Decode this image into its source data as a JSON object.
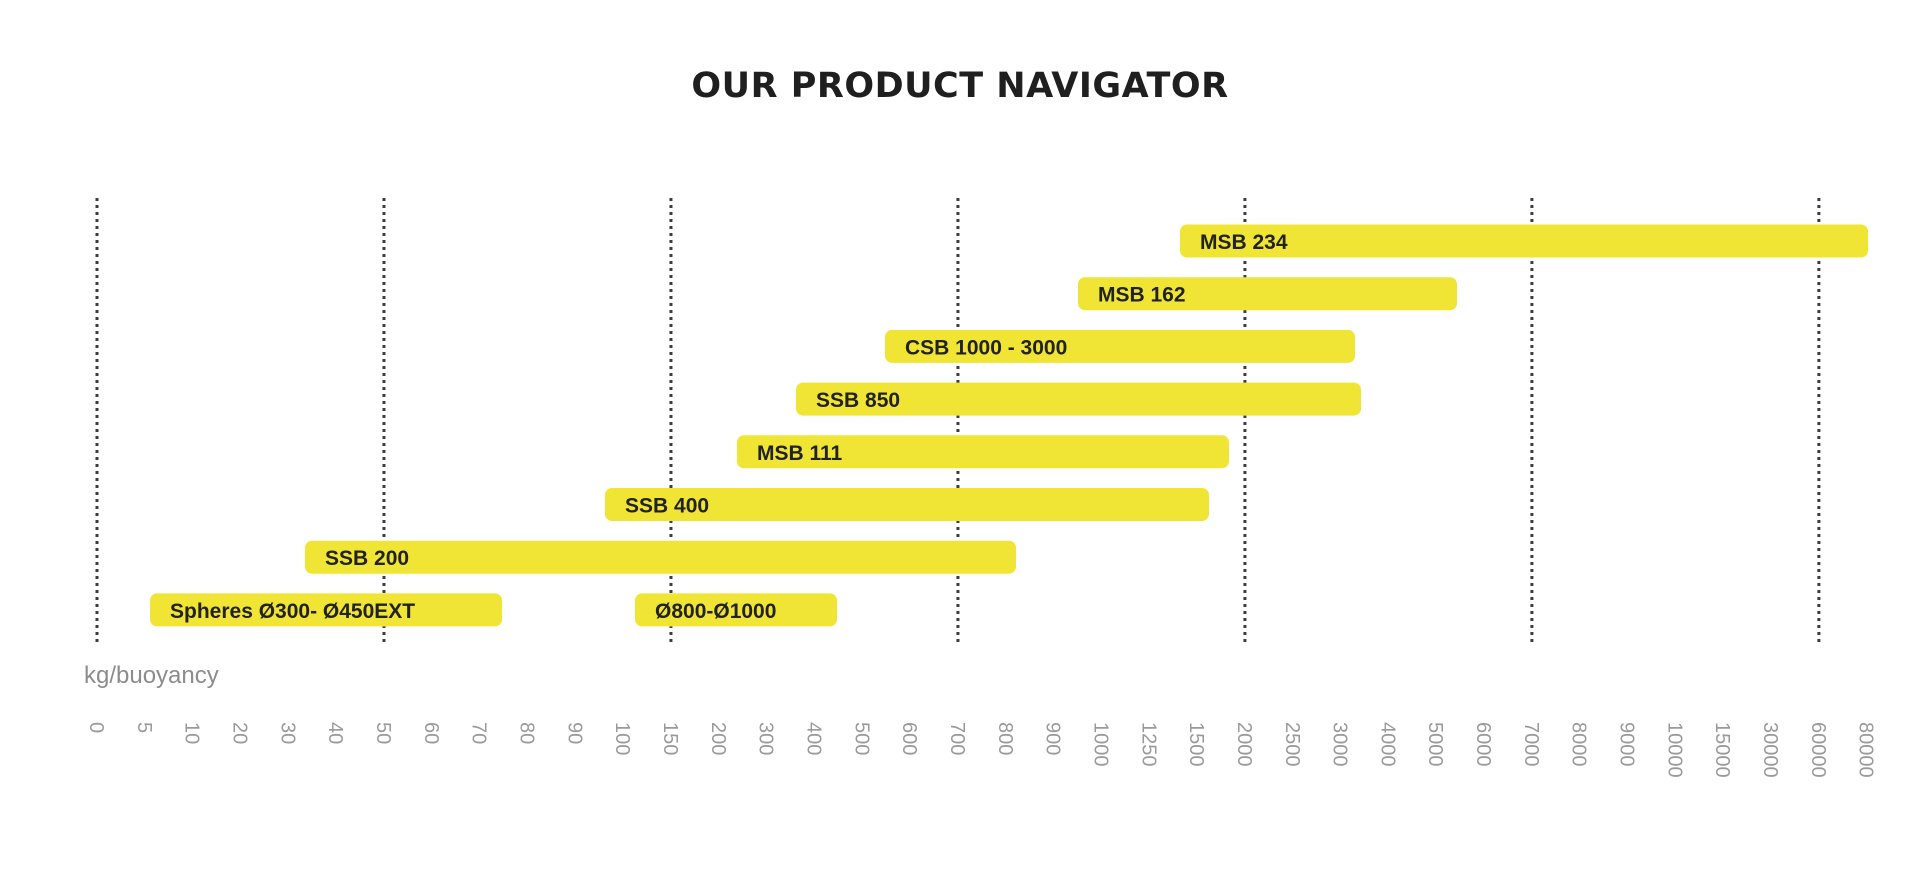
{
  "page": {
    "title": "OUR PRODUCT NAVIGATOR"
  },
  "colors": {
    "bar": "#f0e534",
    "bar_text": "#222222",
    "gridline": "#3c3c3c",
    "tick_text": "#9a9a9a"
  },
  "chart_data": {
    "type": "bar",
    "orientation": "horizontal-range",
    "xlabel": "kg/buoyancy",
    "ylabel": "",
    "ticks": [
      "0",
      "5",
      "10",
      "20",
      "30",
      "40",
      "50",
      "60",
      "70",
      "80",
      "90",
      "100",
      "150",
      "200",
      "300",
      "400",
      "500",
      "600",
      "700",
      "800",
      "900",
      "1000",
      "1250",
      "1500",
      "2000",
      "2500",
      "3000",
      "4000",
      "5000",
      "6000",
      "7000",
      "8000",
      "9000",
      "10000",
      "15000",
      "30000",
      "60000",
      "80000"
    ],
    "gridlines_at": [
      "0",
      "50",
      "150",
      "700",
      "2000",
      "7000",
      "60000"
    ],
    "grid": true,
    "bars": [
      {
        "label": "MSB 234",
        "row": 1,
        "start": "1500",
        "end": "80000"
      },
      {
        "label": "MSB 162",
        "row": 2,
        "start": "1000",
        "end": "6000"
      },
      {
        "label": "CSB 1000 - 3000",
        "row": 3,
        "start": "600",
        "end": "3000"
      },
      {
        "label": "SSB 850",
        "row": 4,
        "start": "400",
        "end": "3000"
      },
      {
        "label": "MSB 111",
        "row": 5,
        "start": "300",
        "end": "2000"
      },
      {
        "label": "SSB 400",
        "row": 6,
        "start": "100",
        "end": "1500"
      },
      {
        "label": "SSB 200",
        "row": 7,
        "start": "40",
        "end": "800"
      },
      {
        "label": "Spheres Ø300- Ø450EXT",
        "row": 8,
        "start": "5",
        "end": "80"
      },
      {
        "label": "Ø800-Ø1000",
        "row": 8,
        "start": "100",
        "end": "400"
      }
    ]
  }
}
